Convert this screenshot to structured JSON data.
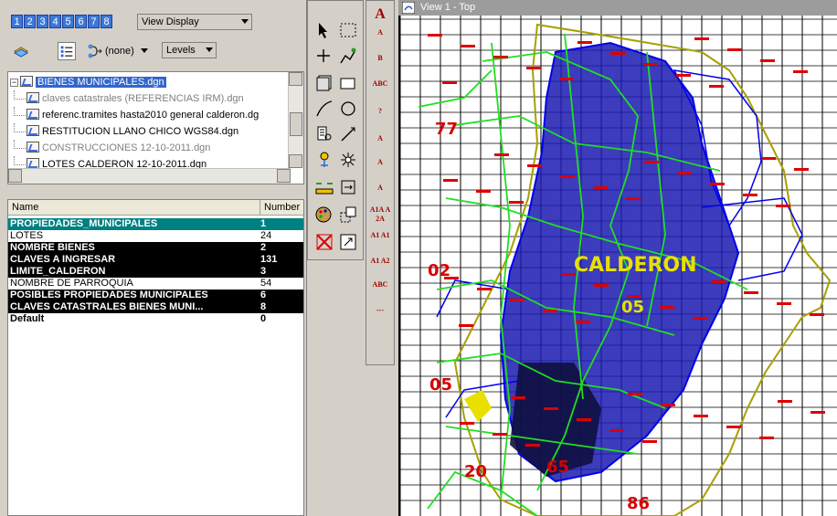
{
  "level_manager": {
    "view_buttons": [
      "1",
      "2",
      "3",
      "4",
      "5",
      "6",
      "7",
      "8"
    ],
    "view_display_label": "View Display",
    "filter_label": "(none)",
    "levels_label": "Levels",
    "files": [
      {
        "label": "BIENES MUNICIPALES.dgn",
        "selected": true
      },
      {
        "label": "claves catastrales (REFERENCIAS IRM).dgn",
        "dim": true
      },
      {
        "label": "referenc.tramites hasta2010 general calderon.dg",
        "dim": false
      },
      {
        "label": "RESTITUCION LLANO CHICO WGS84.dgn",
        "dim": false
      },
      {
        "label": "CONSTRUCCIONES  12-10-2011.dgn",
        "dim": true
      },
      {
        "label": "LOTES CALDERON  12-10-2011.dgn",
        "dim": false
      }
    ],
    "columns": {
      "name": "Name",
      "number": "Number"
    },
    "levels": [
      {
        "name": "PROPIEDADES_MUNICIPALES",
        "number": "1",
        "style": "teal"
      },
      {
        "name": "LOTES",
        "number": "24",
        "style": "normal"
      },
      {
        "name": "NOMBRE BIENES",
        "number": "2",
        "style": "black"
      },
      {
        "name": "CLAVES A INGRESAR",
        "number": "131",
        "style": "black"
      },
      {
        "name": "LIMITE_CALDERON",
        "number": "3",
        "style": "black"
      },
      {
        "name": "NOMBRE DE PARROQUIA",
        "number": "54",
        "style": "normal"
      },
      {
        "name": "POSIBLES PROPIEDADES MUNICIPALES",
        "number": "6",
        "style": "black"
      },
      {
        "name": "CLAVES CATASTRALES BIENES MUNI...",
        "number": "8",
        "style": "black"
      },
      {
        "name": "Default",
        "number": "0",
        "style": "bold"
      }
    ]
  },
  "tools": {
    "text_palette": [
      "A",
      "A",
      "B",
      "ABC",
      "?",
      "A",
      "A",
      "A",
      "A1A A2A",
      "A1 A1",
      "A1 A2",
      "ABC",
      "---"
    ]
  },
  "view": {
    "title": "View 1 - Top",
    "map_labels": [
      {
        "text": "CALDERON",
        "color": "#e8e000"
      },
      {
        "text": "05",
        "color": "#e8e000"
      },
      {
        "text": "77",
        "color": "#d80000"
      },
      {
        "text": "02",
        "color": "#d80000"
      },
      {
        "text": "05",
        "color": "#d80000"
      },
      {
        "text": "20",
        "color": "#d80000"
      },
      {
        "text": "65",
        "color": "#d80000"
      },
      {
        "text": "86",
        "color": "#d80000"
      }
    ]
  },
  "colors": {
    "selected_file": "#3366cc",
    "teal_row": "#008080",
    "black_row": "#000000",
    "map_blue": "#0000ee",
    "map_green": "#22dd22",
    "map_red": "#dd0000",
    "map_olive": "#a8a000"
  }
}
